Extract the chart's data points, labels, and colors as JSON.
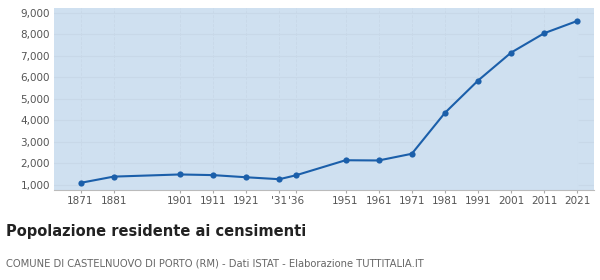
{
  "years": [
    1871,
    1881,
    1901,
    1911,
    1921,
    1931,
    1936,
    1951,
    1961,
    1971,
    1981,
    1991,
    2001,
    2011,
    2021
  ],
  "population": [
    1100,
    1390,
    1490,
    1460,
    1360,
    1270,
    1450,
    2150,
    2140,
    2450,
    4350,
    5850,
    7150,
    8050,
    8620
  ],
  "x_tick_labels": [
    "1871",
    "1881",
    "1901",
    "1911",
    "1921",
    "'31",
    "'36",
    "1951",
    "1961",
    "1971",
    "1981",
    "1991",
    "2001",
    "2011",
    "2021"
  ],
  "y_ticks": [
    1000,
    2000,
    3000,
    4000,
    5000,
    6000,
    7000,
    8000,
    9000
  ],
  "ylim": [
    750,
    9200
  ],
  "xlim": [
    1863,
    2026
  ],
  "line_color": "#1b5faa",
  "fill_color": "#cfe0f0",
  "marker_color": "#1b5faa",
  "bg_color": "#ffffff",
  "grid_color": "#c8d8e8",
  "title": "Popolazione residente ai censimenti",
  "subtitle": "COMUNE DI CASTELNUOVO DI PORTO (RM) - Dati ISTAT - Elaborazione TUTTITALIA.IT",
  "title_fontsize": 10.5,
  "subtitle_fontsize": 7.2
}
